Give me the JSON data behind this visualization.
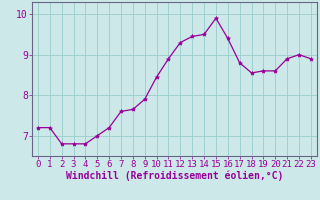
{
  "x": [
    0,
    1,
    2,
    3,
    4,
    5,
    6,
    7,
    8,
    9,
    10,
    11,
    12,
    13,
    14,
    15,
    16,
    17,
    18,
    19,
    20,
    21,
    22,
    23
  ],
  "y": [
    7.2,
    7.2,
    6.8,
    6.8,
    6.8,
    7.0,
    7.2,
    7.6,
    7.65,
    7.9,
    8.45,
    8.9,
    9.3,
    9.45,
    9.5,
    9.9,
    9.4,
    8.8,
    8.55,
    8.6,
    8.6,
    8.9,
    9.0,
    8.9
  ],
  "line_color": "#990099",
  "marker": "*",
  "marker_size": 3,
  "bg_color": "#cce8e8",
  "grid_color": "#99cccc",
  "xlabel": "Windchill (Refroidissement éolien,°C)",
  "xlabel_color": "#990099",
  "ylabel_ticks": [
    7,
    8,
    9,
    10
  ],
  "ylim": [
    6.5,
    10.3
  ],
  "xlim": [
    -0.5,
    23.5
  ],
  "tick_color": "#990099",
  "spine_color": "#666688",
  "font_size": 6.5,
  "xlabel_fontsize": 7
}
